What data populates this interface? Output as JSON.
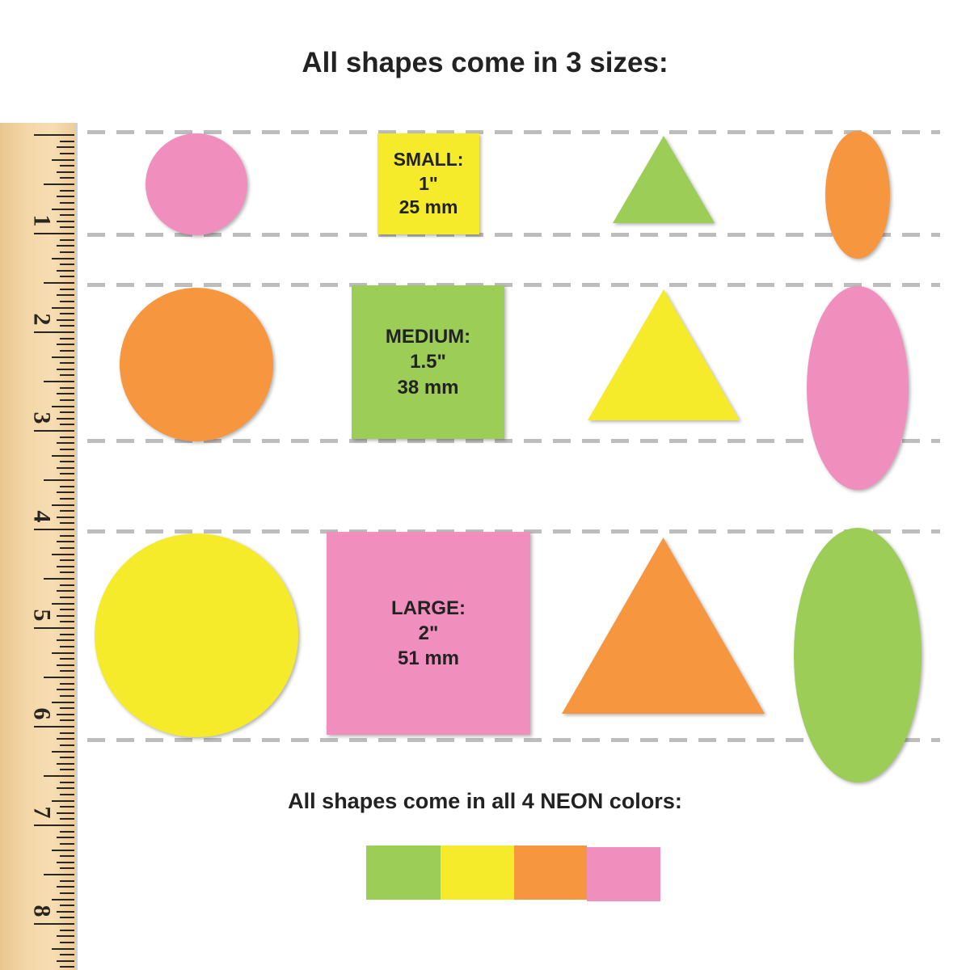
{
  "title": "All shapes come in 3 sizes:",
  "subtitle": "All shapes come in all 4 NEON colors:",
  "colors": {
    "green": "#9ccd57",
    "yellow": "#f5eb2a",
    "orange": "#f6963f",
    "pink": "#f08fbe"
  },
  "ruler": {
    "labels": [
      "1",
      "2",
      "3",
      "4",
      "5",
      "6",
      "7",
      "8"
    ]
  },
  "sizes": [
    {
      "name": "SMALL:",
      "inches": "1\"",
      "mm": "25 mm"
    },
    {
      "name": "MEDIUM:",
      "inches": "1.5\"",
      "mm": "38 mm"
    },
    {
      "name": "LARGE:",
      "inches": "2\"",
      "mm": "51 mm"
    }
  ],
  "swatches": [
    "green",
    "yellow",
    "orange",
    "pink"
  ]
}
